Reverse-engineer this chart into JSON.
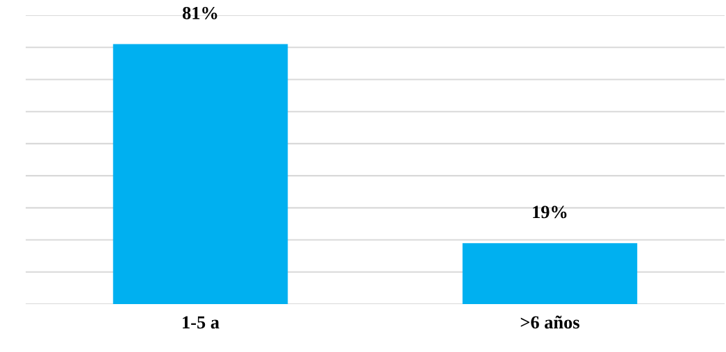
{
  "chart_data": {
    "type": "bar",
    "categories": [
      "1-5 a",
      ">6 años"
    ],
    "values": [
      81,
      19
    ],
    "value_labels": [
      "81%",
      "19%"
    ],
    "color": "#00b0f0",
    "ylim": [
      0,
      90
    ],
    "yticks": [
      {
        "value": 0,
        "label": null
      },
      {
        "value": 10,
        "label": null
      },
      {
        "value": 20,
        "label": null
      },
      {
        "value": 30,
        "label": null
      },
      {
        "value": 40,
        "label": null
      },
      {
        "value": 50,
        "label": null
      },
      {
        "value": 60,
        "label": null
      },
      {
        "value": 70,
        "label": null
      },
      {
        "value": 80,
        "label": null
      },
      {
        "value": 90,
        "label": null
      }
    ],
    "tick_labels": "x",
    "grid": "y"
  }
}
